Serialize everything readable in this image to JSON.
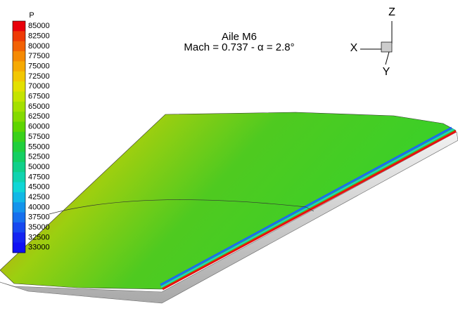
{
  "title": {
    "line1": "Aile M6",
    "line2": "Mach = 0.737 - α = 2.8°"
  },
  "legend": {
    "title": "P",
    "levels": [
      85000,
      82500,
      80000,
      77500,
      75000,
      72500,
      70000,
      67500,
      65000,
      62500,
      60000,
      57500,
      55000,
      52500,
      50000,
      47500,
      45000,
      42500,
      40000,
      37500,
      35000,
      32500,
      33000
    ],
    "colors": [
      "#e8000b",
      "#ee3a06",
      "#f26205",
      "#f58a04",
      "#f6aa03",
      "#f2c702",
      "#e3e000",
      "#c4e400",
      "#a4e000",
      "#84da00",
      "#5ed500",
      "#3ad11a",
      "#20cf3c",
      "#14cf62",
      "#10d08a",
      "#10d3b0",
      "#10d6d6",
      "#12b8e6",
      "#1494ec",
      "#166fee",
      "#1648f0",
      "#1424f2",
      "#1010f4"
    ]
  },
  "axes": {
    "x": "X",
    "y": "Y",
    "z": "Z"
  }
}
